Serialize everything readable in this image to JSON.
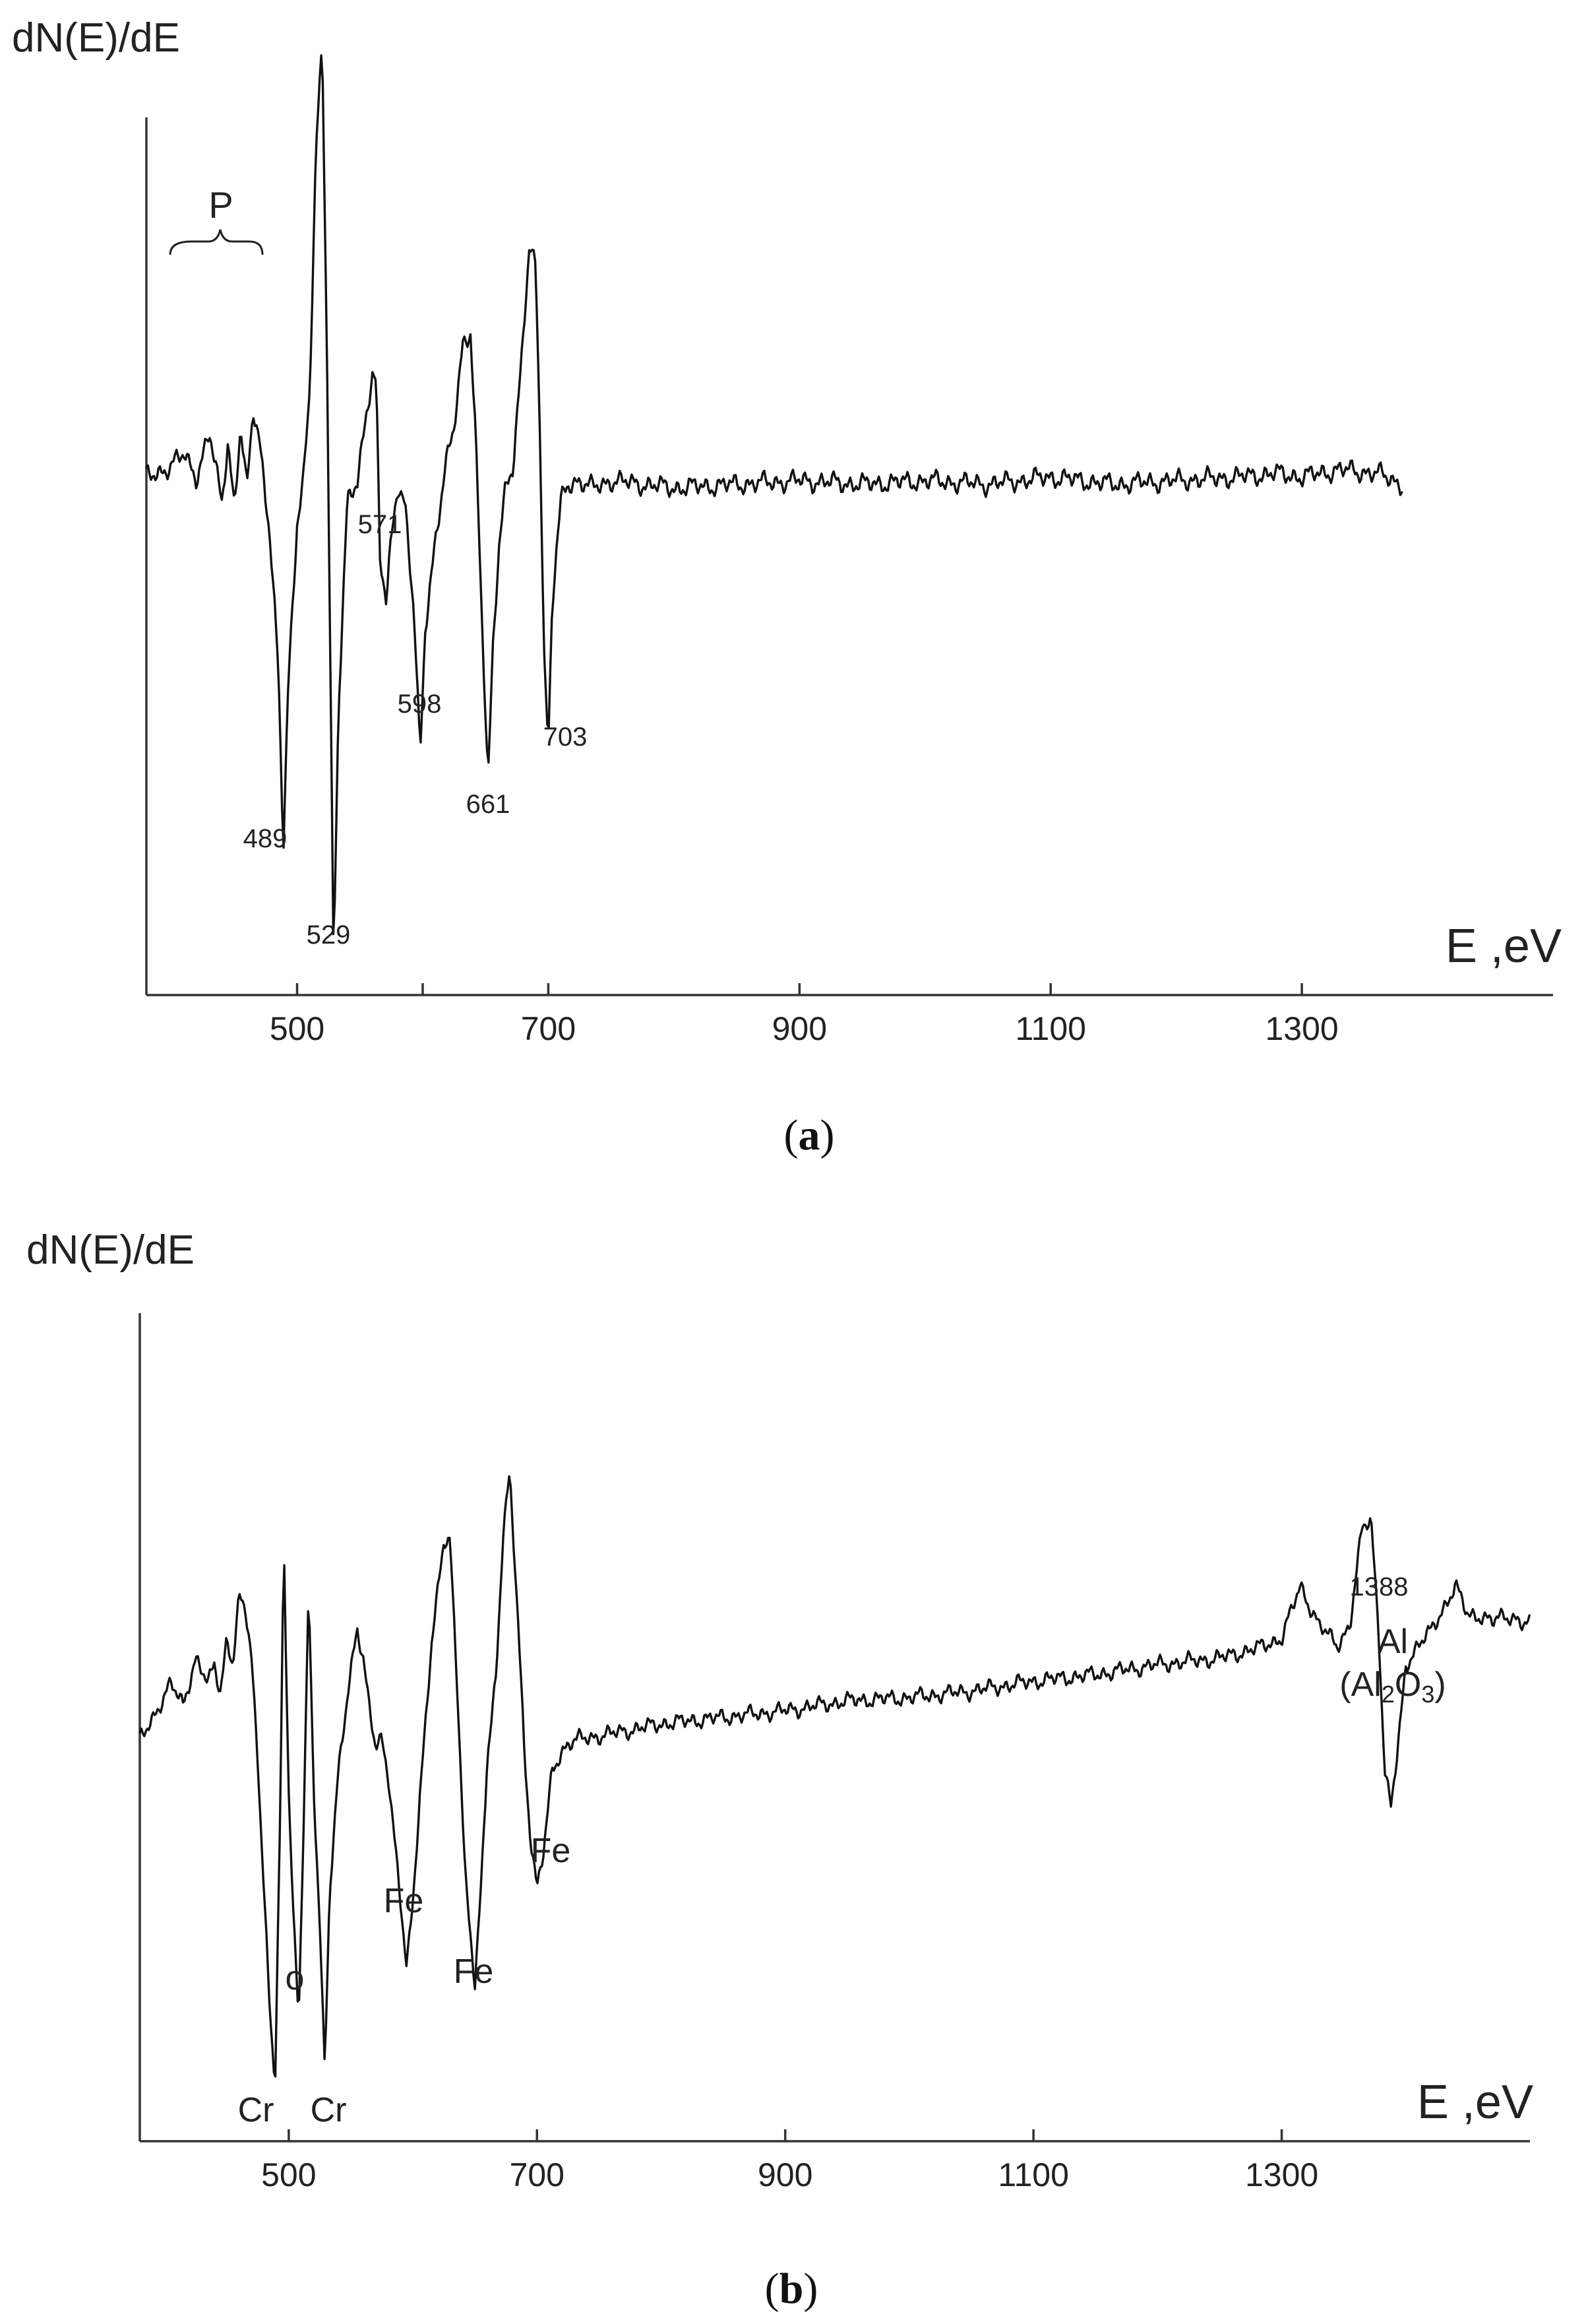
{
  "chart_data": [
    {
      "panel": "a",
      "type": "line",
      "ylabel": "dN(E)/dE",
      "xlabel": "E ,eV",
      "xlim": [
        380,
        1500
      ],
      "ylim": [
        -1.2,
        1.25
      ],
      "xticks": [
        500,
        700,
        900,
        1100,
        1300
      ],
      "minor_ticks": [
        600
      ],
      "grid": false,
      "caption": {
        "open": "(",
        "letter": "a",
        "close": ")"
      },
      "series": [
        {
          "x": [
            380,
            395,
            410,
            420,
            430,
            440,
            445,
            450,
            455,
            460,
            465,
            470,
            478,
            485,
            489,
            493,
            500,
            505,
            510,
            515,
            520,
            524,
            529,
            533,
            540,
            548,
            555,
            560,
            563,
            566,
            571,
            575,
            580,
            586,
            593,
            598,
            602,
            610,
            618,
            625,
            632,
            638,
            642,
            647,
            652,
            656,
            661,
            666,
            672,
            678,
            685,
            690,
            693,
            697,
            700,
            703,
            706,
            710,
            715,
            722,
            735,
            750,
            800,
            850,
            900,
            950,
            1000,
            1050,
            1100,
            1150,
            1200,
            1250,
            1280,
            1300,
            1330,
            1360,
            1380
          ],
          "y": [
            0.02,
            0.04,
            0.08,
            0.02,
            0.14,
            -0.05,
            0.12,
            -0.06,
            0.16,
            -0.02,
            0.2,
            0.12,
            -0.12,
            -0.5,
            -1.0,
            -0.55,
            -0.1,
            0.02,
            0.25,
            0.9,
            1.2,
            0.3,
            -1.3,
            -0.6,
            -0.05,
            0.0,
            0.2,
            0.3,
            0.28,
            -0.2,
            -0.33,
            -0.15,
            0.0,
            -0.05,
            -0.35,
            -0.75,
            -0.4,
            -0.15,
            0.05,
            0.15,
            0.38,
            0.42,
            0.15,
            -0.35,
            -0.82,
            -0.45,
            -0.15,
            0.0,
            0.05,
            0.3,
            0.65,
            0.6,
            0.2,
            -0.5,
            -0.72,
            -0.35,
            -0.2,
            -0.05,
            0.0,
            0.01,
            -0.01,
            0.01,
            -0.01,
            0.0,
            0.01,
            0.0,
            0.01,
            0.0,
            0.02,
            0.0,
            0.01,
            0.02,
            0.03,
            0.02,
            0.04,
            0.03,
            0.0
          ],
          "noise": 0.022
        }
      ],
      "annotations": [
        {
          "text": "P",
          "x": 440
        },
        {
          "text": "489",
          "x": 489,
          "y": -1.2
        },
        {
          "text": "529",
          "x": 529,
          "y": -1.45
        },
        {
          "text": "571",
          "x": 571,
          "y": -0.45
        },
        {
          "text": "598",
          "x": 598,
          "y": -0.9
        },
        {
          "text": "661",
          "x": 661,
          "y": -1.02
        },
        {
          "text": "703",
          "x": 703,
          "y": -0.88
        }
      ]
    },
    {
      "panel": "b",
      "type": "line",
      "ylabel": "dN(E)/dE",
      "xlabel": "E ,eV",
      "xlim": [
        380,
        1500
      ],
      "ylim": [
        -1.2,
        1.25
      ],
      "xticks": [
        500,
        700,
        900,
        1100,
        1300
      ],
      "grid": false,
      "caption": {
        "open": "(",
        "letter": "b",
        "close": ")"
      },
      "series": [
        {
          "x": [
            380,
            395,
            405,
            415,
            425,
            435,
            440,
            445,
            450,
            455,
            460,
            465,
            470,
            475,
            480,
            485,
            489,
            493,
            496,
            500,
            504,
            508,
            512,
            516,
            520,
            525,
            529,
            533,
            540,
            548,
            555,
            560,
            565,
            570,
            575,
            580,
            588,
            595,
            600,
            606,
            615,
            625,
            630,
            636,
            642,
            650,
            655,
            660,
            667,
            673,
            678,
            685,
            690,
            695,
            700,
            705,
            712,
            720,
            730,
            760,
            800,
            850,
            900,
            950,
            1000,
            1050,
            1100,
            1150,
            1200,
            1250,
            1280,
            1300,
            1315,
            1330,
            1345,
            1355,
            1365,
            1372,
            1378,
            1383,
            1388,
            1393,
            1400,
            1410,
            1420,
            1430,
            1440,
            1450,
            1460,
            1470,
            1480,
            1490,
            1495,
            1500
          ],
          "y": [
            -0.05,
            0.05,
            0.12,
            0.06,
            0.2,
            0.12,
            0.18,
            0.1,
            0.26,
            0.18,
            0.38,
            0.35,
            0.2,
            -0.1,
            -0.5,
            -0.9,
            -1.1,
            -0.3,
            0.55,
            -0.2,
            -0.6,
            -0.9,
            -0.3,
            0.4,
            -0.2,
            -0.6,
            -1.05,
            -0.5,
            -0.15,
            0.1,
            0.3,
            0.2,
            0.05,
            -0.08,
            -0.05,
            -0.15,
            -0.45,
            -0.75,
            -0.55,
            -0.2,
            0.25,
            0.55,
            0.55,
            0.1,
            -0.45,
            -0.8,
            -0.5,
            -0.1,
            0.15,
            0.6,
            0.75,
            0.3,
            -0.1,
            -0.35,
            -0.5,
            -0.4,
            -0.15,
            -0.08,
            -0.05,
            -0.03,
            0.0,
            0.02,
            0.04,
            0.07,
            0.08,
            0.1,
            0.13,
            0.15,
            0.18,
            0.2,
            0.23,
            0.26,
            0.42,
            0.3,
            0.24,
            0.3,
            0.6,
            0.62,
            0.3,
            -0.15,
            -0.25,
            -0.1,
            0.18,
            0.24,
            0.28,
            0.35,
            0.42,
            0.33,
            0.33,
            0.31,
            0.33,
            0.32,
            0.3,
            0.3
          ],
          "noise": 0.02
        }
      ],
      "annotations": [
        {
          "text": "Cr",
          "x": 487
        },
        {
          "text": "o",
          "x": 510
        },
        {
          "text": "Cr",
          "x": 540
        },
        {
          "text": "Fe",
          "x": 598
        },
        {
          "text": "Fe",
          "x": 655
        },
        {
          "text": "Fe",
          "x": 702
        },
        {
          "text": "1388",
          "x": 1388
        },
        {
          "text": "Al",
          "x": 1388
        },
        {
          "text": "(Al",
          "sub": "2",
          "mid": "O",
          "sub2": "3",
          "close": ")",
          "x": 1388
        }
      ]
    }
  ]
}
